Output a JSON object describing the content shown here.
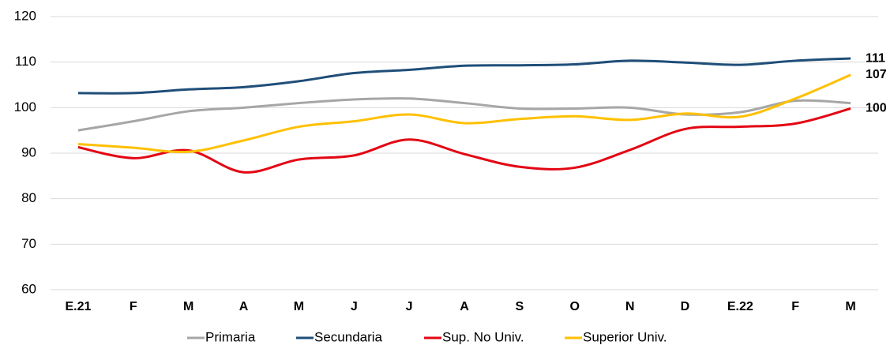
{
  "chart_data": {
    "type": "line",
    "categories": [
      "E.21",
      "F",
      "M",
      "A",
      "M",
      "J",
      "J",
      "A",
      "S",
      "O",
      "N",
      "D",
      "E.22",
      "F",
      "M"
    ],
    "series": [
      {
        "name": "Primaria",
        "color": "#a6a6a6",
        "values": [
          95,
          97,
          99.2,
          100,
          101,
          101.8,
          102,
          101,
          99.8,
          99.8,
          100,
          98.5,
          99,
          101.5,
          101
        ]
      },
      {
        "name": "Secundaria",
        "color": "#1f4e79",
        "values": [
          103.2,
          103.2,
          104,
          104.5,
          105.8,
          107.6,
          108.3,
          109.2,
          109.3,
          109.5,
          110.3,
          109.9,
          109.4,
          110.3,
          110.8
        ],
        "value_labels": [
          null,
          null,
          null,
          null,
          null,
          null,
          null,
          null,
          null,
          null,
          null,
          null,
          null,
          null,
          "111"
        ]
      },
      {
        "name": "Sup. No Univ.",
        "color": "#e30613",
        "values": [
          91.3,
          88.9,
          90.6,
          85.8,
          88.6,
          89.5,
          93,
          89.8,
          87,
          86.8,
          90.7,
          95.3,
          95.8,
          96.5,
          99.8
        ],
        "value_labels": [
          null,
          null,
          null,
          null,
          null,
          null,
          null,
          null,
          null,
          null,
          null,
          null,
          null,
          null,
          "100"
        ]
      },
      {
        "name": "Superior Univ.",
        "color": "#ffc000",
        "values": [
          92,
          91.2,
          90.3,
          92.8,
          95.8,
          97,
          98.5,
          96.6,
          97.5,
          98.1,
          97.3,
          98.7,
          98,
          102,
          107.2
        ],
        "value_labels": [
          null,
          null,
          null,
          null,
          null,
          null,
          null,
          null,
          null,
          null,
          null,
          null,
          null,
          null,
          "107"
        ]
      }
    ],
    "ylim": [
      60,
      120
    ],
    "yticks": [
      60,
      70,
      80,
      90,
      100,
      110,
      120
    ],
    "grid": true,
    "legend": "bottom"
  }
}
